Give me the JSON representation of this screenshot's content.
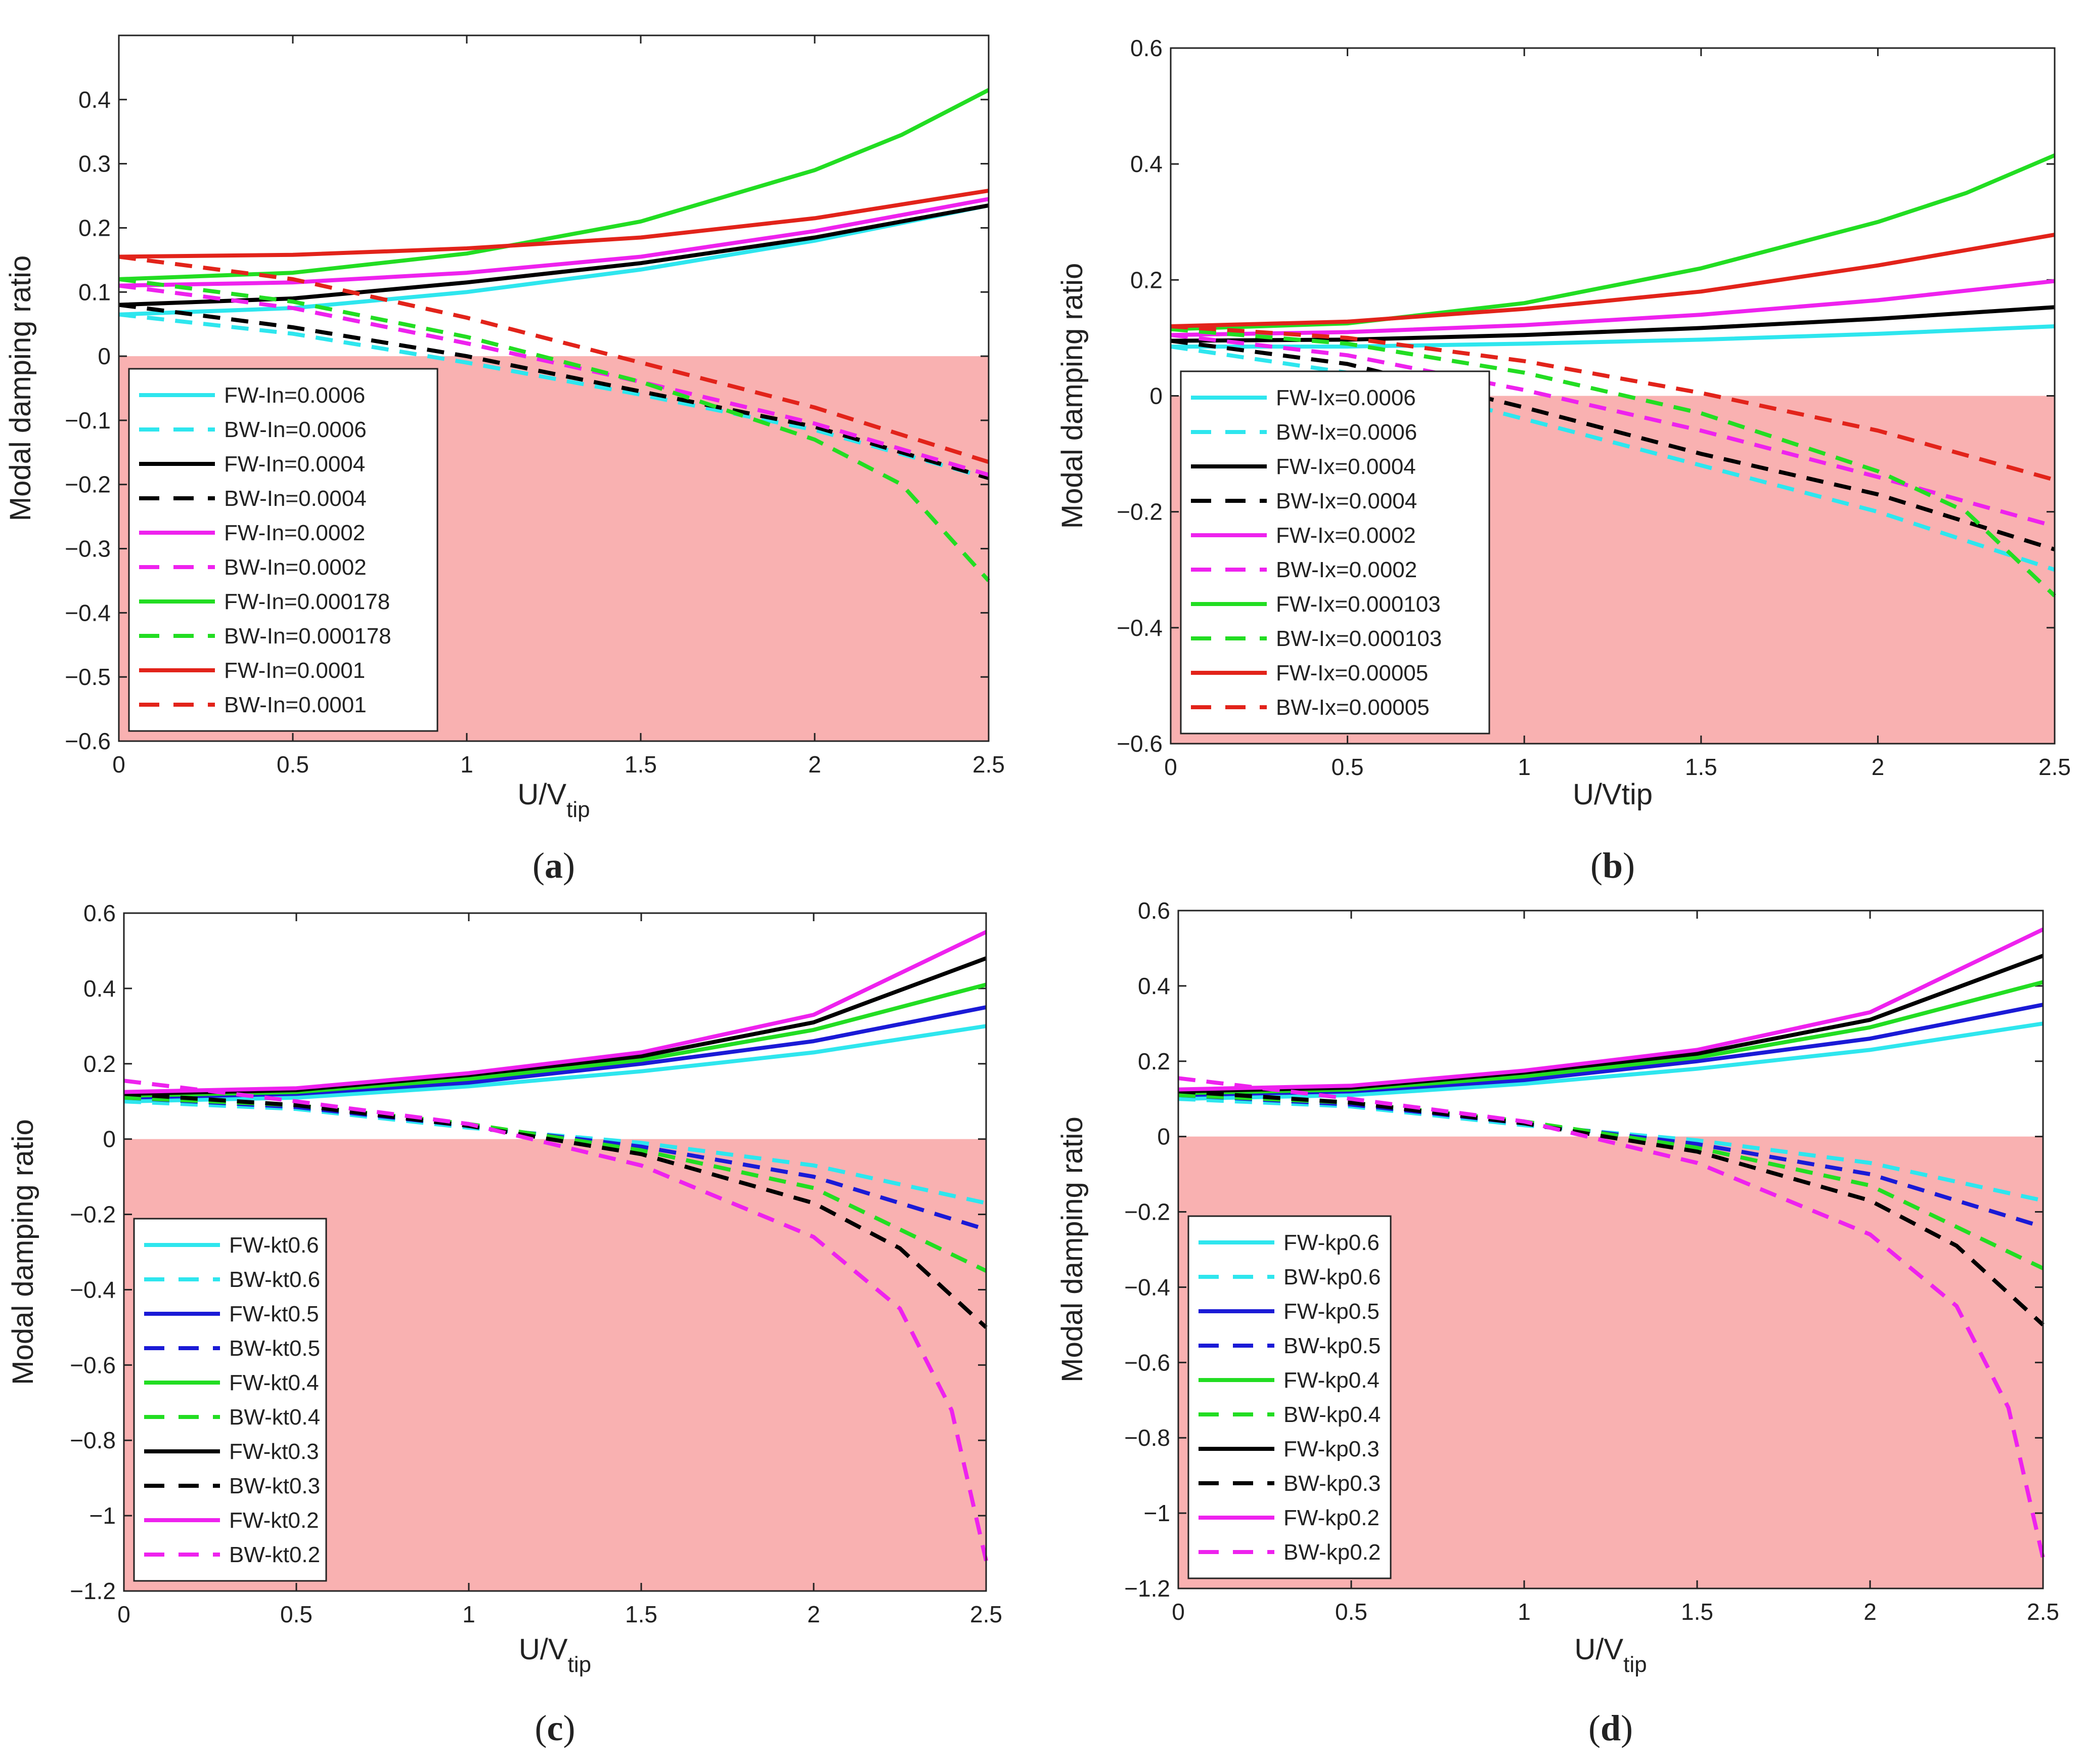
{
  "colors": {
    "unstable_region": "#f9b1b1",
    "cyan": "#2ee6ee",
    "black": "#000000",
    "magenta": "#ee22ee",
    "green": "#22dd22",
    "red": "#e2231a",
    "blue": "#1a1ad6"
  },
  "chart_data": [
    {
      "id": "a",
      "type": "line",
      "caption": "a",
      "xlabel": "U/V",
      "xlabel_sub": "tip",
      "ylabel": "Modal damping ratio",
      "xlim": [
        0,
        2.5
      ],
      "ylim": [
        -0.6,
        0.5
      ],
      "xticks": [
        0,
        0.5,
        1,
        1.5,
        2,
        2.5
      ],
      "xtick_labels": [
        "0",
        "0.5",
        "1",
        "1.5",
        "2",
        "2.5"
      ],
      "yticks": [
        -0.6,
        -0.5,
        -0.4,
        -0.3,
        -0.2,
        -0.1,
        0,
        0.1,
        0.2,
        0.3,
        0.4
      ],
      "ytick_labels": [
        "−0.6",
        "−0.5",
        "−0.4",
        "−0.3",
        "−0.2",
        "−0.1",
        "0",
        "0.1",
        "0.2",
        "0.3",
        "0.4"
      ],
      "shaded_region": {
        "y_below": 0
      },
      "legend_position": "bottom-left",
      "series": [
        {
          "name": "FW-In=0.0006",
          "color": "cyan",
          "dash": false,
          "x": [
            0,
            0.5,
            1,
            1.5,
            2,
            2.5
          ],
          "y": [
            0.065,
            0.075,
            0.1,
            0.135,
            0.18,
            0.235
          ]
        },
        {
          "name": "BW-In=0.0006",
          "color": "cyan",
          "dash": true,
          "x": [
            0,
            0.5,
            1,
            1.5,
            2,
            2.5
          ],
          "y": [
            0.065,
            0.035,
            -0.01,
            -0.06,
            -0.115,
            -0.19
          ]
        },
        {
          "name": "FW-In=0.0004",
          "color": "black",
          "dash": false,
          "x": [
            0,
            0.5,
            1,
            1.5,
            2,
            2.5
          ],
          "y": [
            0.08,
            0.09,
            0.115,
            0.145,
            0.185,
            0.235
          ]
        },
        {
          "name": "BW-In=0.0004",
          "color": "black",
          "dash": true,
          "x": [
            0,
            0.5,
            1,
            1.5,
            2,
            2.5
          ],
          "y": [
            0.08,
            0.045,
            0.0,
            -0.055,
            -0.11,
            -0.19
          ]
        },
        {
          "name": "FW-In=0.0002",
          "color": "magenta",
          "dash": false,
          "x": [
            0,
            0.5,
            1,
            1.5,
            2,
            2.5
          ],
          "y": [
            0.11,
            0.115,
            0.13,
            0.155,
            0.195,
            0.245
          ]
        },
        {
          "name": "BW-In=0.0002",
          "color": "magenta",
          "dash": true,
          "x": [
            0,
            0.5,
            1,
            1.5,
            2,
            2.5
          ],
          "y": [
            0.11,
            0.075,
            0.02,
            -0.04,
            -0.105,
            -0.185
          ]
        },
        {
          "name": "FW-In=0.000178",
          "color": "green",
          "dash": false,
          "x": [
            0,
            0.5,
            1,
            1.5,
            2,
            2.25,
            2.5
          ],
          "y": [
            0.12,
            0.13,
            0.16,
            0.21,
            0.29,
            0.345,
            0.415
          ]
        },
        {
          "name": "BW-In=0.000178",
          "color": "green",
          "dash": true,
          "x": [
            0,
            0.5,
            1,
            1.5,
            2,
            2.25,
            2.5
          ],
          "y": [
            0.12,
            0.085,
            0.03,
            -0.04,
            -0.13,
            -0.2,
            -0.35
          ]
        },
        {
          "name": "FW-In=0.0001",
          "color": "red",
          "dash": false,
          "x": [
            0,
            0.5,
            1,
            1.5,
            2,
            2.5
          ],
          "y": [
            0.155,
            0.158,
            0.168,
            0.185,
            0.215,
            0.258
          ]
        },
        {
          "name": "BW-In=0.0001",
          "color": "red",
          "dash": true,
          "x": [
            0,
            0.5,
            1,
            1.5,
            2,
            2.5
          ],
          "y": [
            0.155,
            0.12,
            0.06,
            -0.01,
            -0.08,
            -0.165
          ]
        }
      ]
    },
    {
      "id": "b",
      "type": "line",
      "caption": "b",
      "xlabel": "U/Vtip",
      "xlabel_sub": "",
      "ylabel": "Modal damping ratio",
      "xlim": [
        0,
        2.5
      ],
      "ylim": [
        -0.6,
        0.6
      ],
      "xticks": [
        0,
        0.5,
        1,
        1.5,
        2,
        2.5
      ],
      "xtick_labels": [
        "0",
        "0.5",
        "1",
        "1.5",
        "2",
        "2.5"
      ],
      "yticks": [
        -0.6,
        -0.4,
        -0.2,
        0,
        0.2,
        0.4,
        0.6
      ],
      "ytick_labels": [
        "−0.6",
        "−0.4",
        "−0.2",
        "0",
        "0.2",
        "0.4",
        "0.6"
      ],
      "shaded_region": {
        "y_below": 0
      },
      "legend_position": "bottom-left",
      "series": [
        {
          "name": "FW-Ix=0.0006",
          "color": "cyan",
          "dash": false,
          "x": [
            0,
            0.5,
            1,
            1.5,
            2,
            2.5
          ],
          "y": [
            0.085,
            0.085,
            0.09,
            0.097,
            0.107,
            0.12
          ]
        },
        {
          "name": "BW-Ix=0.0006",
          "color": "cyan",
          "dash": true,
          "x": [
            0,
            0.5,
            1,
            1.5,
            2,
            2.5
          ],
          "y": [
            0.085,
            0.04,
            -0.04,
            -0.12,
            -0.2,
            -0.3
          ]
        },
        {
          "name": "FW-Ix=0.0004",
          "color": "black",
          "dash": false,
          "x": [
            0,
            0.5,
            1,
            1.5,
            2,
            2.5
          ],
          "y": [
            0.095,
            0.097,
            0.105,
            0.117,
            0.133,
            0.153
          ]
        },
        {
          "name": "BW-Ix=0.0004",
          "color": "black",
          "dash": true,
          "x": [
            0,
            0.5,
            1,
            1.5,
            2,
            2.5
          ],
          "y": [
            0.095,
            0.055,
            -0.02,
            -0.1,
            -0.17,
            -0.265
          ]
        },
        {
          "name": "FW-Ix=0.0002",
          "color": "magenta",
          "dash": false,
          "x": [
            0,
            0.5,
            1,
            1.5,
            2,
            2.5
          ],
          "y": [
            0.105,
            0.11,
            0.122,
            0.14,
            0.165,
            0.198
          ]
        },
        {
          "name": "BW-Ix=0.0002",
          "color": "magenta",
          "dash": true,
          "x": [
            0,
            0.5,
            1,
            1.5,
            2,
            2.5
          ],
          "y": [
            0.105,
            0.07,
            0.01,
            -0.06,
            -0.14,
            -0.225
          ]
        },
        {
          "name": "FW-Ix=0.000103",
          "color": "green",
          "dash": false,
          "x": [
            0,
            0.5,
            1,
            1.5,
            2,
            2.25,
            2.5
          ],
          "y": [
            0.115,
            0.125,
            0.16,
            0.22,
            0.3,
            0.35,
            0.415
          ]
        },
        {
          "name": "BW-Ix=0.000103",
          "color": "green",
          "dash": true,
          "x": [
            0,
            0.5,
            1,
            1.5,
            2,
            2.25,
            2.5
          ],
          "y": [
            0.115,
            0.09,
            0.04,
            -0.03,
            -0.13,
            -0.2,
            -0.345
          ]
        },
        {
          "name": "FW-Ix=0.00005",
          "color": "red",
          "dash": false,
          "x": [
            0,
            0.5,
            1,
            1.5,
            2,
            2.5
          ],
          "y": [
            0.12,
            0.128,
            0.15,
            0.18,
            0.225,
            0.278
          ]
        },
        {
          "name": "BW-Ix=0.00005",
          "color": "red",
          "dash": true,
          "x": [
            0,
            0.5,
            1,
            1.5,
            2,
            2.5
          ],
          "y": [
            0.12,
            0.1,
            0.06,
            0.005,
            -0.06,
            -0.145
          ]
        }
      ]
    },
    {
      "id": "c",
      "type": "line",
      "caption": "c",
      "xlabel": "U/V",
      "xlabel_sub": "tip",
      "ylabel": "Modal damping ratio",
      "xlim": [
        0,
        2.5
      ],
      "ylim": [
        -1.2,
        0.6
      ],
      "xticks": [
        0,
        0.5,
        1,
        1.5,
        2,
        2.5
      ],
      "xtick_labels": [
        "0",
        "0.5",
        "1",
        "1.5",
        "2",
        "2.5"
      ],
      "yticks": [
        -1.2,
        -1,
        -0.8,
        -0.6,
        -0.4,
        -0.2,
        0,
        0.2,
        0.4,
        0.6
      ],
      "ytick_labels": [
        "−1.2",
        "−1",
        "−0.8",
        "−0.6",
        "−0.4",
        "−0.2",
        "0",
        "0.2",
        "0.4",
        "0.6"
      ],
      "shaded_region": {
        "y_below": 0
      },
      "legend_position": "bottom-left",
      "series": [
        {
          "name": "FW-kt0.6",
          "color": "cyan",
          "dash": false,
          "x": [
            0,
            0.5,
            1,
            1.5,
            2,
            2.5
          ],
          "y": [
            0.1,
            0.11,
            0.14,
            0.18,
            0.23,
            0.3
          ]
        },
        {
          "name": "BW-kt0.6",
          "color": "cyan",
          "dash": true,
          "x": [
            0,
            0.5,
            1,
            1.5,
            2,
            2.5
          ],
          "y": [
            0.1,
            0.08,
            0.03,
            -0.01,
            -0.07,
            -0.17
          ]
        },
        {
          "name": "FW-kt0.5",
          "color": "blue",
          "dash": false,
          "x": [
            0,
            0.5,
            1,
            1.5,
            2,
            2.5
          ],
          "y": [
            0.11,
            0.12,
            0.15,
            0.2,
            0.26,
            0.35
          ]
        },
        {
          "name": "BW-kt0.5",
          "color": "blue",
          "dash": true,
          "x": [
            0,
            0.5,
            1,
            1.5,
            2,
            2.5
          ],
          "y": [
            0.11,
            0.085,
            0.035,
            -0.02,
            -0.1,
            -0.24
          ]
        },
        {
          "name": "FW-kt0.4",
          "color": "green",
          "dash": false,
          "x": [
            0,
            0.5,
            1,
            1.5,
            2,
            2.5
          ],
          "y": [
            0.115,
            0.125,
            0.16,
            0.21,
            0.29,
            0.41
          ]
        },
        {
          "name": "BW-kt0.4",
          "color": "green",
          "dash": true,
          "x": [
            0,
            0.5,
            1,
            1.5,
            2,
            2.5
          ],
          "y": [
            0.11,
            0.09,
            0.04,
            -0.03,
            -0.13,
            -0.35
          ]
        },
        {
          "name": "FW-kt0.3",
          "color": "black",
          "dash": false,
          "x": [
            0,
            0.5,
            1,
            1.5,
            2,
            2.5
          ],
          "y": [
            0.12,
            0.13,
            0.17,
            0.22,
            0.31,
            0.48
          ]
        },
        {
          "name": "BW-kt0.3",
          "color": "black",
          "dash": true,
          "x": [
            0,
            0.5,
            1,
            1.5,
            2,
            2.25,
            2.5
          ],
          "y": [
            0.12,
            0.09,
            0.035,
            -0.04,
            -0.17,
            -0.29,
            -0.5
          ]
        },
        {
          "name": "FW-kt0.2",
          "color": "magenta",
          "dash": false,
          "x": [
            0,
            0.5,
            1,
            1.5,
            2,
            2.5
          ],
          "y": [
            0.125,
            0.135,
            0.175,
            0.23,
            0.33,
            0.55
          ]
        },
        {
          "name": "BW-kt0.2",
          "color": "magenta",
          "dash": true,
          "x": [
            0,
            0.5,
            1,
            1.5,
            2,
            2.25,
            2.4,
            2.5
          ],
          "y": [
            0.155,
            0.1,
            0.04,
            -0.07,
            -0.26,
            -0.45,
            -0.72,
            -1.12
          ]
        }
      ]
    },
    {
      "id": "d",
      "type": "line",
      "caption": "d",
      "xlabel": "U/V",
      "xlabel_sub": "tip",
      "ylabel": "Modal damping ratio",
      "xlim": [
        0,
        2.5
      ],
      "ylim": [
        -1.2,
        0.6
      ],
      "xticks": [
        0,
        0.5,
        1,
        1.5,
        2,
        2.5
      ],
      "xtick_labels": [
        "0",
        "0.5",
        "1",
        "1.5",
        "2",
        "2.5"
      ],
      "yticks": [
        -1.2,
        -1,
        -0.8,
        -0.6,
        -0.4,
        -0.2,
        0,
        0.2,
        0.4,
        0.6
      ],
      "ytick_labels": [
        "−1.2",
        "−1",
        "−0.8",
        "−0.6",
        "−0.4",
        "−0.2",
        "0",
        "0.2",
        "0.4",
        "0.6"
      ],
      "shaded_region": {
        "y_below": 0
      },
      "legend_position": "bottom-left",
      "series": [
        {
          "name": "FW-kp0.6",
          "color": "cyan",
          "dash": false,
          "x": [
            0,
            0.5,
            1,
            1.5,
            2,
            2.5
          ],
          "y": [
            0.1,
            0.11,
            0.14,
            0.18,
            0.23,
            0.3
          ]
        },
        {
          "name": "BW-kp0.6",
          "color": "cyan",
          "dash": true,
          "x": [
            0,
            0.5,
            1,
            1.5,
            2,
            2.5
          ],
          "y": [
            0.1,
            0.08,
            0.03,
            -0.01,
            -0.07,
            -0.17
          ]
        },
        {
          "name": "FW-kp0.5",
          "color": "blue",
          "dash": false,
          "x": [
            0,
            0.5,
            1,
            1.5,
            2,
            2.5
          ],
          "y": [
            0.11,
            0.12,
            0.15,
            0.2,
            0.26,
            0.35
          ]
        },
        {
          "name": "BW-kp0.5",
          "color": "blue",
          "dash": true,
          "x": [
            0,
            0.5,
            1,
            1.5,
            2,
            2.5
          ],
          "y": [
            0.11,
            0.085,
            0.035,
            -0.02,
            -0.1,
            -0.24
          ]
        },
        {
          "name": "FW-kp0.4",
          "color": "green",
          "dash": false,
          "x": [
            0,
            0.5,
            1,
            1.5,
            2,
            2.5
          ],
          "y": [
            0.115,
            0.125,
            0.16,
            0.21,
            0.29,
            0.41
          ]
        },
        {
          "name": "BW-kp0.4",
          "color": "green",
          "dash": true,
          "x": [
            0,
            0.5,
            1,
            1.5,
            2,
            2.5
          ],
          "y": [
            0.11,
            0.09,
            0.04,
            -0.03,
            -0.13,
            -0.35
          ]
        },
        {
          "name": "FW-kp0.3",
          "color": "black",
          "dash": false,
          "x": [
            0,
            0.5,
            1,
            1.5,
            2,
            2.5
          ],
          "y": [
            0.12,
            0.13,
            0.17,
            0.22,
            0.31,
            0.48
          ]
        },
        {
          "name": "BW-kp0.3",
          "color": "black",
          "dash": true,
          "x": [
            0,
            0.5,
            1,
            1.5,
            2,
            2.25,
            2.5
          ],
          "y": [
            0.12,
            0.09,
            0.035,
            -0.04,
            -0.17,
            -0.29,
            -0.5
          ]
        },
        {
          "name": "FW-kp0.2",
          "color": "magenta",
          "dash": false,
          "x": [
            0,
            0.5,
            1,
            1.5,
            2,
            2.5
          ],
          "y": [
            0.125,
            0.135,
            0.175,
            0.23,
            0.33,
            0.55
          ]
        },
        {
          "name": "BW-kp0.2",
          "color": "magenta",
          "dash": true,
          "x": [
            0,
            0.5,
            1,
            1.5,
            2,
            2.25,
            2.4,
            2.5
          ],
          "y": [
            0.155,
            0.1,
            0.04,
            -0.07,
            -0.26,
            -0.45,
            -0.72,
            -1.12
          ]
        }
      ]
    }
  ]
}
